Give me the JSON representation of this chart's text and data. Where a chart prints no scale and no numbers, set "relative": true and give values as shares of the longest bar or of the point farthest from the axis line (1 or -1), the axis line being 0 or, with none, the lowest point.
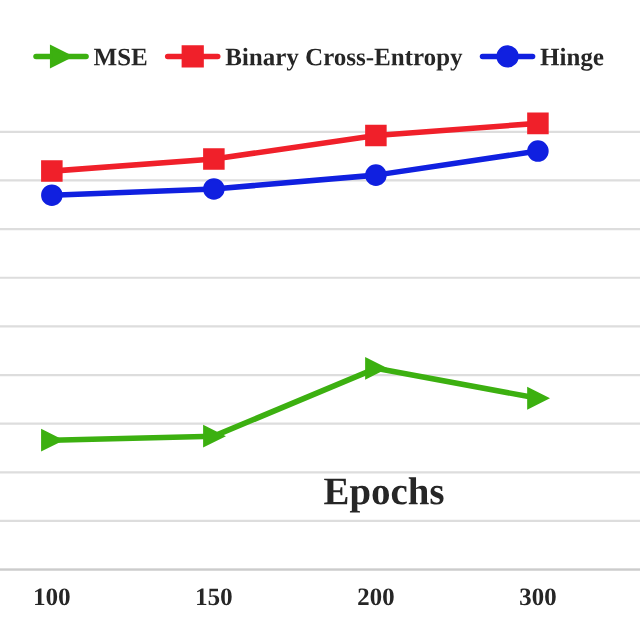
{
  "chart_data": {
    "type": "line",
    "xlabel": "Epochs",
    "categories": [
      "100",
      "150",
      "200",
      "300"
    ],
    "relative": true,
    "grid": "y",
    "legend": "top",
    "series": [
      {
        "name": "MSE",
        "color": "#3cb010",
        "marker": "triangle",
        "values": [
          0.29,
          0.299,
          0.451,
          0.384
        ]
      },
      {
        "name": "Binary Cross-Entropy",
        "color": "#f0202a",
        "marker": "square",
        "values": [
          0.893,
          0.92,
          0.973,
          1.0
        ]
      },
      {
        "name": "Hinge",
        "color": "#1020e0",
        "marker": "circle",
        "values": [
          0.839,
          0.853,
          0.884,
          0.938
        ]
      }
    ]
  }
}
